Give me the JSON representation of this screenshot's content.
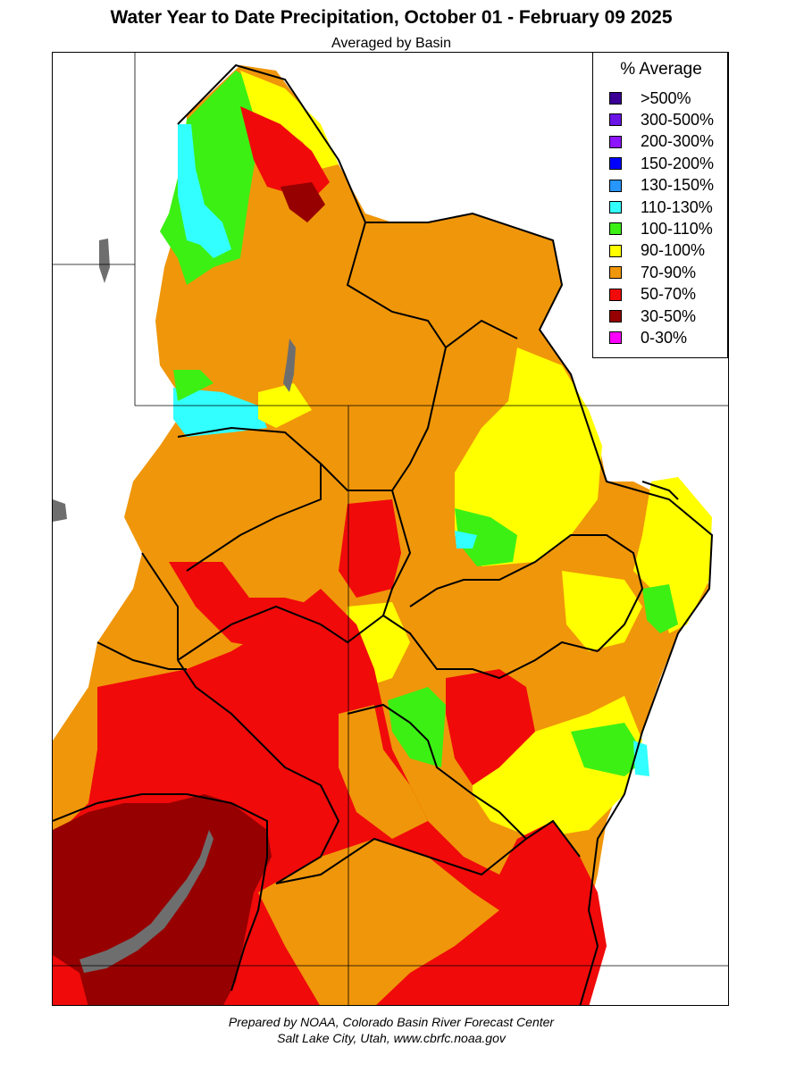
{
  "title": "Water Year to Date Precipitation, October 01  - February 09 2025",
  "subtitle": "Averaged by Basin",
  "legend": {
    "title": "% Average",
    "items": [
      {
        "label": ">500%",
        "color": "#3a0096"
      },
      {
        "label": "300-500%",
        "color": "#6a14e6"
      },
      {
        "label": "200-300%",
        "color": "#8c14ff"
      },
      {
        "label": "150-200%",
        "color": "#0000ff"
      },
      {
        "label": "130-150%",
        "color": "#2896ff"
      },
      {
        "label": "110-130%",
        "color": "#32ffff"
      },
      {
        "label": "100-110%",
        "color": "#3cf014"
      },
      {
        "label": "90-100%",
        "color": "#ffff00"
      },
      {
        "label": "70-90%",
        "color": "#f0960a"
      },
      {
        "label": "50-70%",
        "color": "#f00a0a"
      },
      {
        "label": "30-50%",
        "color": "#960000"
      },
      {
        "label": "0-30%",
        "color": "#ff00ff"
      }
    ]
  },
  "footer": {
    "line1": "Prepared by NOAA, Colorado Basin River Forecast Center",
    "line2": "Salt Lake City, Utah, www.cbrfc.noaa.gov"
  }
}
